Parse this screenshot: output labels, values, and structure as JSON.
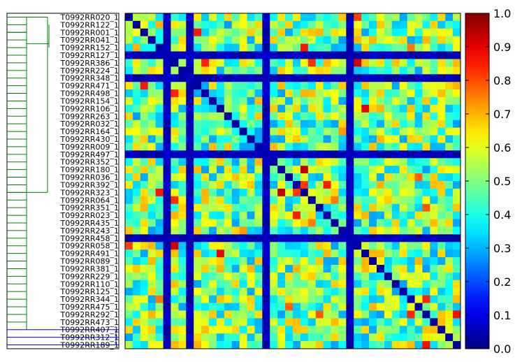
{
  "chart_data": {
    "type": "heatmap",
    "title": "",
    "colormap": "jet",
    "rows": [
      "T0992RR020_1",
      "T0992RR122_1",
      "T0992RR001_1",
      "T0992RR041_1",
      "T0992RR152_1",
      "T0992RR127_1",
      "T0992RR386_1",
      "T0992RR224_1",
      "T0992RR348_1",
      "T0992RR471_1",
      "T0992RR498_1",
      "T0992RR154_1",
      "T0992RR106_1",
      "T0992RR263_1",
      "T0992RR032_1",
      "T0992RR164_1",
      "T0992RR430_1",
      "T0992RR009_1",
      "T0992RR497_1",
      "T0992RR352_1",
      "T0992RR180_1",
      "T0992RR036_1",
      "T0992RR392_1",
      "T0992RR323_1",
      "T0992RR064_1",
      "T0992RR351_1",
      "T0992RR023_1",
      "T0992RR435_1",
      "T0992RR243_1",
      "T0992RR458_1",
      "T0992RR058_1",
      "T0992RR491_1",
      "T0992RR089_1",
      "T0992RR381_1",
      "T0992RR229_1",
      "T0992RR110_1",
      "T0992RR125_1",
      "T0992RR344_1",
      "T0992RR475_1",
      "T0992RR292_1",
      "T0992RR473_1",
      "T0992RR407_1",
      "T0992RR312_1",
      "T0992RR189_1"
    ],
    "value_range": [
      0.0,
      1.0
    ],
    "colorbar_ticks": [
      "0.0",
      "0.1",
      "0.2",
      "0.3",
      "0.4",
      "0.5",
      "0.6",
      "0.7",
      "0.8",
      "0.9",
      "1.0"
    ],
    "matrix_note": "pairwise similarity 0-1, diagonal band near 0, low rows/cols at T0992RR127_1, T0992RR348_1, T0992RR497_1, T0992RR458_1",
    "low_rows": [
      "T0992RR127_1",
      "T0992RR348_1",
      "T0992RR497_1",
      "T0992RR458_1"
    ],
    "dendrogram": {
      "colors": [
        "#008000",
        "#0000ff"
      ]
    }
  }
}
